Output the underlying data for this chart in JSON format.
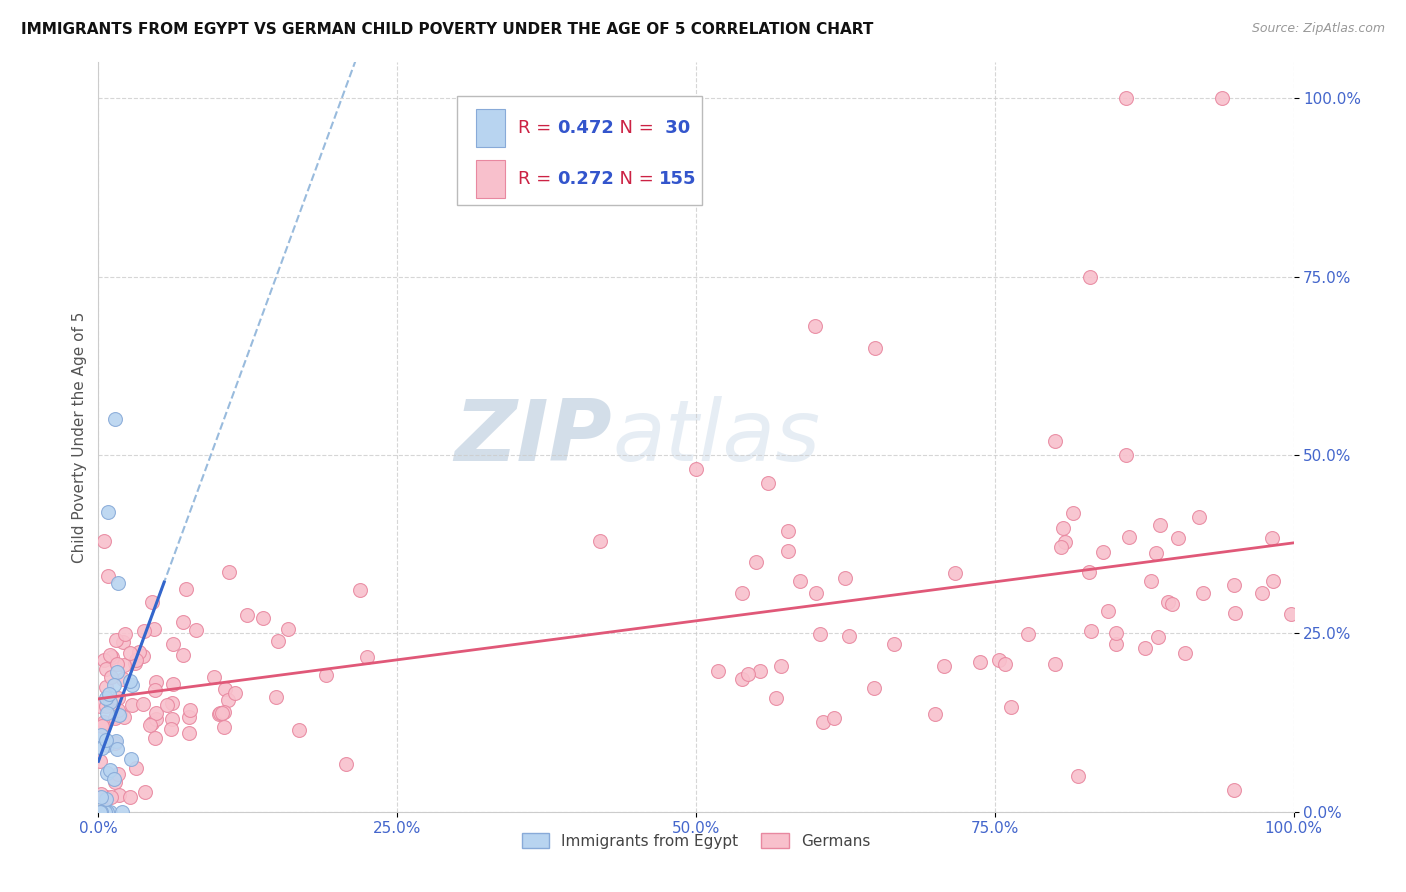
{
  "title": "IMMIGRANTS FROM EGYPT VS GERMAN CHILD POVERTY UNDER THE AGE OF 5 CORRELATION CHART",
  "source": "Source: ZipAtlas.com",
  "ylabel": "Child Poverty Under the Age of 5",
  "xlim": [
    0,
    1.0
  ],
  "ylim": [
    0,
    1.05
  ],
  "blue_R": 0.472,
  "blue_N": 30,
  "pink_R": 0.272,
  "pink_N": 155,
  "blue_dot_face": "#b8d4f0",
  "blue_dot_edge": "#88aad8",
  "pink_dot_face": "#f8c0cc",
  "pink_dot_edge": "#e888a0",
  "trend_blue_solid_color": "#3366cc",
  "trend_blue_dash_color": "#99bbdd",
  "trend_pink_color": "#e05878",
  "legend_label_blue": "Immigrants from Egypt",
  "legend_label_pink": "Germans",
  "R_label_color": "#cc2244",
  "N_value_color": "#3355cc",
  "tick_color": "#4466cc",
  "ylabel_color": "#555555",
  "title_color": "#111111",
  "source_color": "#999999",
  "watermark_color": "#c8d8e8",
  "grid_color": "#cccccc",
  "dot_size": 100
}
